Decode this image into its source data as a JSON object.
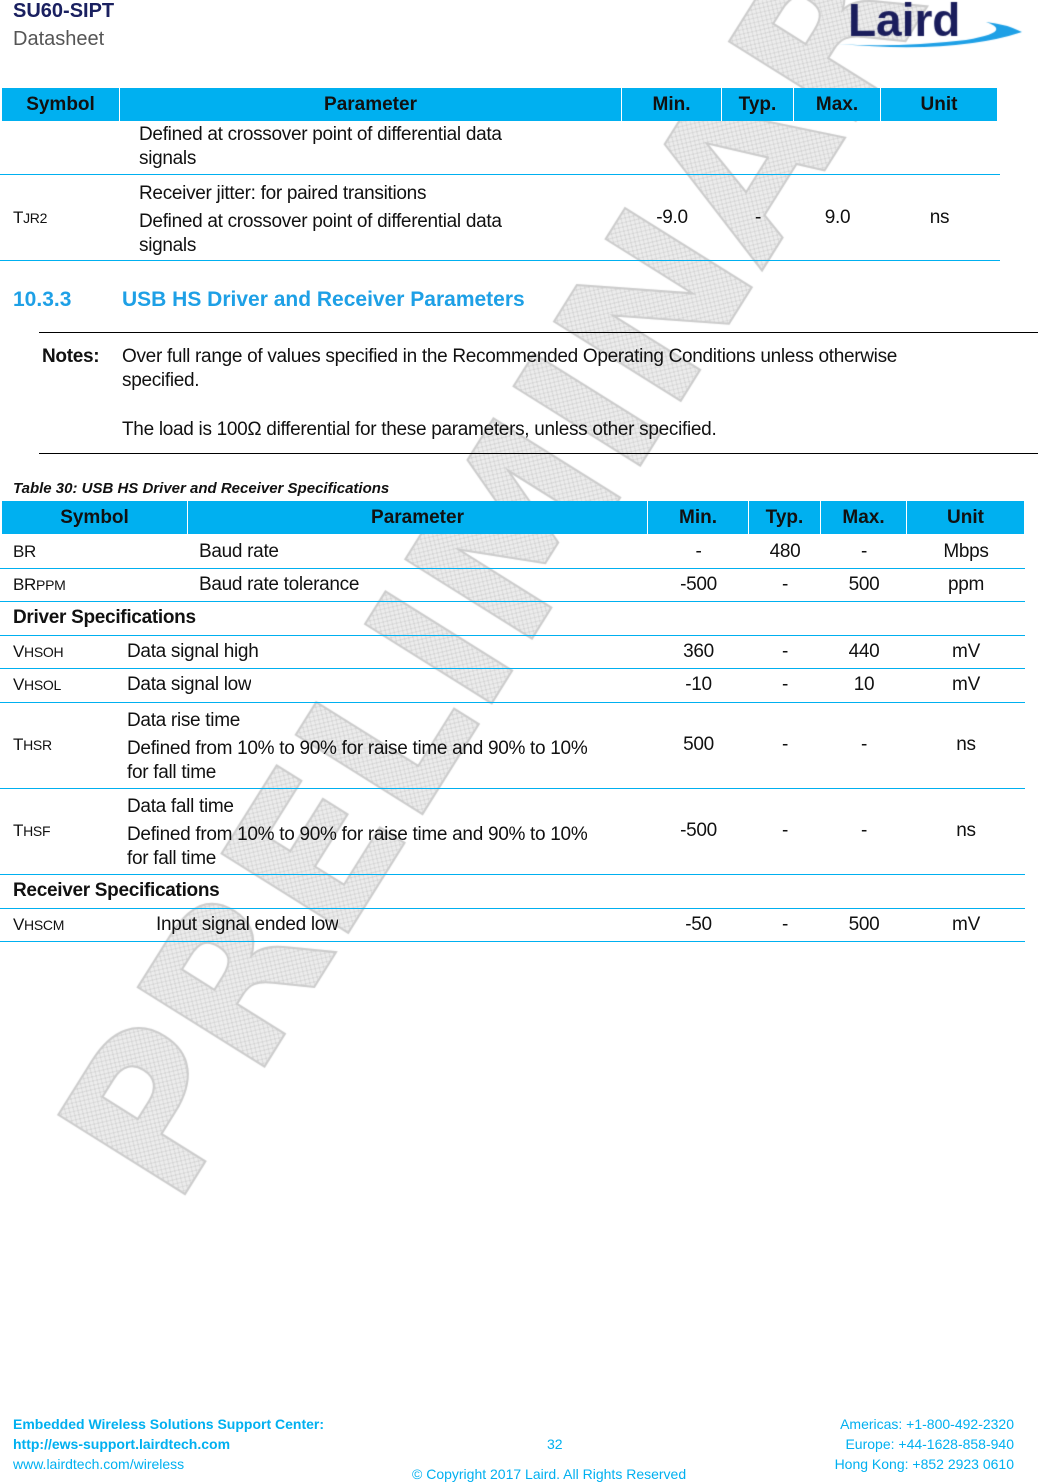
{
  "header": {
    "product": "SU60-SIPT",
    "doc_type": "Datasheet",
    "logo": "Laird"
  },
  "watermark": "PRELIMINARY",
  "table_prev": {
    "headers": [
      "Symbol",
      "Parameter",
      "Min.",
      "Typ.",
      "Max.",
      "Unit"
    ],
    "rows": [
      {
        "symbol": "",
        "param": [
          "Defined at crossover point of differential data",
          "signals"
        ],
        "min": "",
        "typ": "",
        "max": "",
        "unit": ""
      },
      {
        "symbol": "T",
        "symbol_sub": "JR2",
        "param": [
          "Receiver jitter: for paired transitions",
          "Defined at crossover point of differential data",
          "signals"
        ],
        "min": "-9.0",
        "typ": "-",
        "max": "9.0",
        "unit": "ns"
      }
    ]
  },
  "section": {
    "number": "10.3.3",
    "title": "USB HS Driver and Receiver Parameters"
  },
  "notes": {
    "label": "Notes:",
    "lines": [
      "Over full range of values specified in the Recommended Operating Conditions unless otherwise",
      "specified.",
      "The load is 100Ω differential for these parameters, unless other specified."
    ]
  },
  "table": {
    "caption": "Table 30: USB HS Driver and Receiver Specifications",
    "headers": [
      "Symbol",
      "Parameter",
      "Min.",
      "Typ.",
      "Max.",
      "Unit"
    ],
    "rows": [
      {
        "symbol": "BR",
        "symbol_sub": "",
        "param": [
          "Baud rate"
        ],
        "min": "-",
        "typ": "480",
        "max": "-",
        "unit": "Mbps"
      },
      {
        "symbol": "BR",
        "symbol_sub": "PPM",
        "param": [
          "Baud rate tolerance"
        ],
        "min": "-500",
        "typ": "-",
        "max": "500",
        "unit": "ppm"
      },
      {
        "section": "Driver Specifications"
      },
      {
        "symbol": "V",
        "symbol_sub": "HSOH",
        "param": [
          "Data signal high"
        ],
        "min": "360",
        "typ": "-",
        "max": "440",
        "unit": "mV"
      },
      {
        "symbol": "V",
        "symbol_sub": "HSOL",
        "param": [
          "Data signal low"
        ],
        "min": "-10",
        "typ": "-",
        "max": "10",
        "unit": "mV"
      },
      {
        "symbol": "T",
        "symbol_sub": "HSR",
        "param": [
          "Data rise time",
          "Defined from 10% to 90% for raise time and 90% to 10%",
          "for fall time"
        ],
        "min": "500",
        "typ": "-",
        "max": "-",
        "unit": "ns"
      },
      {
        "symbol": "T",
        "symbol_sub": "HSF",
        "param": [
          "Data fall time",
          "Defined from 10% to 90% for raise time and 90% to 10%",
          "for fall time"
        ],
        "min": "-500",
        "typ": "-",
        "max": "-",
        "unit": "ns"
      },
      {
        "section": "Receiver Specifications"
      },
      {
        "symbol": "V",
        "symbol_sub": "HSCM",
        "param": [
          "Input signal ended low"
        ],
        "min": "-50",
        "typ": "-",
        "max": "500",
        "unit": "mV"
      }
    ]
  },
  "footer": {
    "support_title": "Embedded Wireless Solutions Support Center:",
    "support_url": "http://ews-support.lairdtech.com",
    "website": "www.lairdtech.com/wireless",
    "page": "32",
    "copyright": "© Copyright 2017 Laird. All Rights Reserved",
    "americas": "Americas: +1-800-492-2320",
    "europe": "Europe: +44-1628-858-940",
    "hongkong": "Hong Kong: +852 2923 0610"
  }
}
